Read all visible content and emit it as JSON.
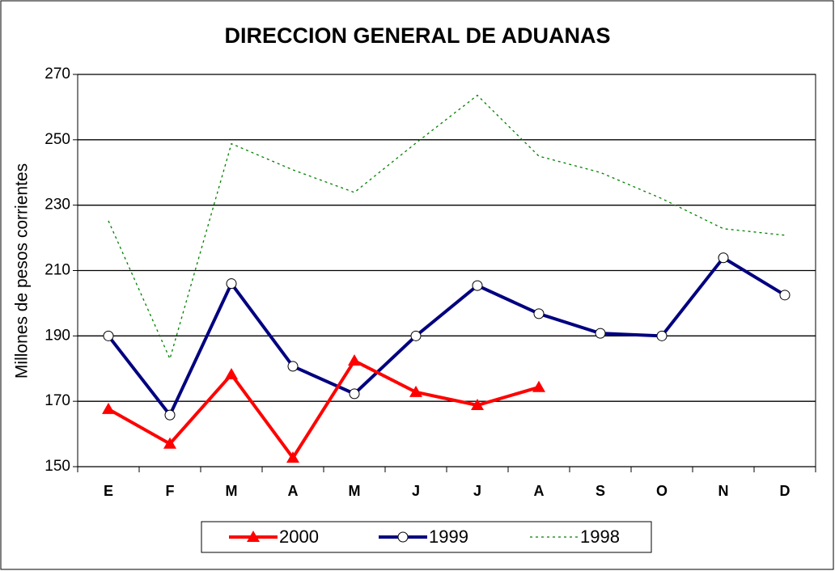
{
  "chart_data": {
    "type": "line",
    "title": "DIRECCION GENERAL DE ADUANAS",
    "y_label": "Millones de pesos corrientes",
    "categories": [
      "E",
      "F",
      "M",
      "A",
      "M",
      "J",
      "J",
      "A",
      "S",
      "O",
      "N",
      "D"
    ],
    "series": [
      {
        "name": "2000",
        "color": "#ff0000",
        "marker": "triangle",
        "values": [
          167.6,
          157,
          178.2,
          152.7,
          182.4,
          172.8,
          168.8,
          174.3,
          null,
          null,
          null,
          null
        ]
      },
      {
        "name": "1999",
        "color": "#000080",
        "marker": "circle",
        "values": [
          190,
          165.8,
          206,
          180.7,
          172.3,
          190,
          205.4,
          196.8,
          190.8,
          190,
          213.9,
          202.5
        ]
      },
      {
        "name": "1998",
        "color": "#008000",
        "marker": "none",
        "dashed": true,
        "values": [
          225.2,
          183,
          248.8,
          240.8,
          233.9,
          249,
          263.6,
          245,
          240,
          232,
          222.8,
          220.8
        ]
      }
    ],
    "ylim": [
      150,
      270
    ],
    "yticks": [
      150,
      170,
      190,
      210,
      230,
      250,
      270
    ],
    "grid": true,
    "legend": "bottom"
  }
}
